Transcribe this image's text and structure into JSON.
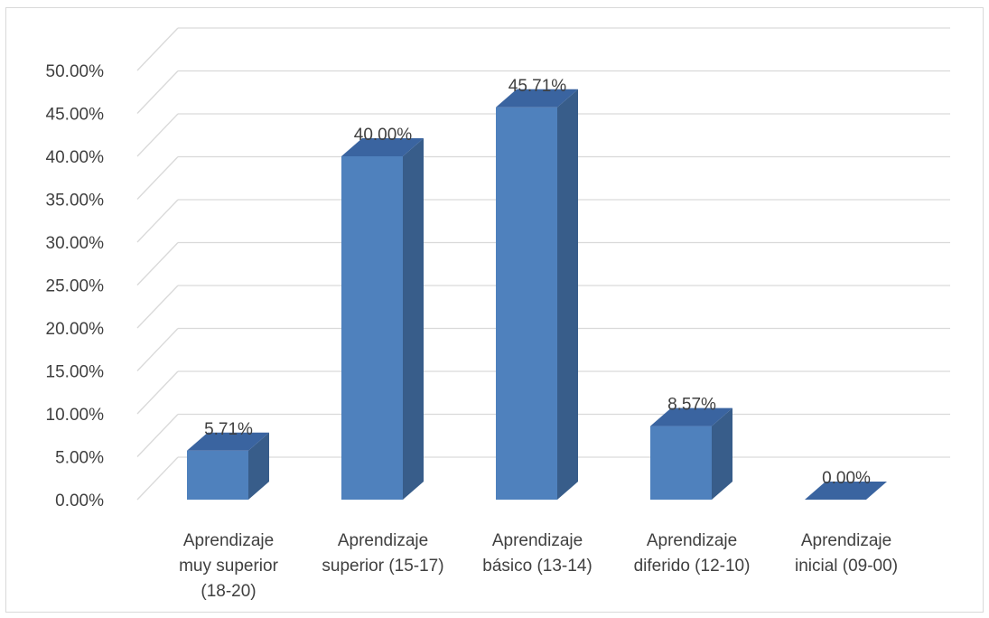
{
  "chart_data": {
    "type": "bar",
    "style": "3d-column",
    "categories": [
      [
        "Aprendizaje",
        "muy superior",
        "(18-20)"
      ],
      [
        "Aprendizaje",
        "superior (15-17)"
      ],
      [
        "Aprendizaje",
        "básico (13-14)"
      ],
      [
        "Aprendizaje",
        "diferido (12-10)"
      ],
      [
        "Aprendizaje",
        "inicial (09-00)"
      ]
    ],
    "values": [
      5.71,
      40.0,
      45.71,
      8.57,
      0.0
    ],
    "data_labels": [
      "5.71%",
      "40.00%",
      "45.71%",
      "8.57%",
      "0.00%"
    ],
    "y_ticks": [
      "0.00%",
      "5.00%",
      "10.00%",
      "15.00%",
      "20.00%",
      "25.00%",
      "30.00%",
      "35.00%",
      "40.00%",
      "45.00%",
      "50.00%"
    ],
    "ylim": [
      0,
      50
    ],
    "grid": true,
    "legend": "none",
    "colors": {
      "bar_front": "#4f81bd",
      "bar_side": "#385d8a",
      "bar_top": "#3a64a0",
      "gridline": "#d9d9d9",
      "text": "#404040"
    }
  }
}
